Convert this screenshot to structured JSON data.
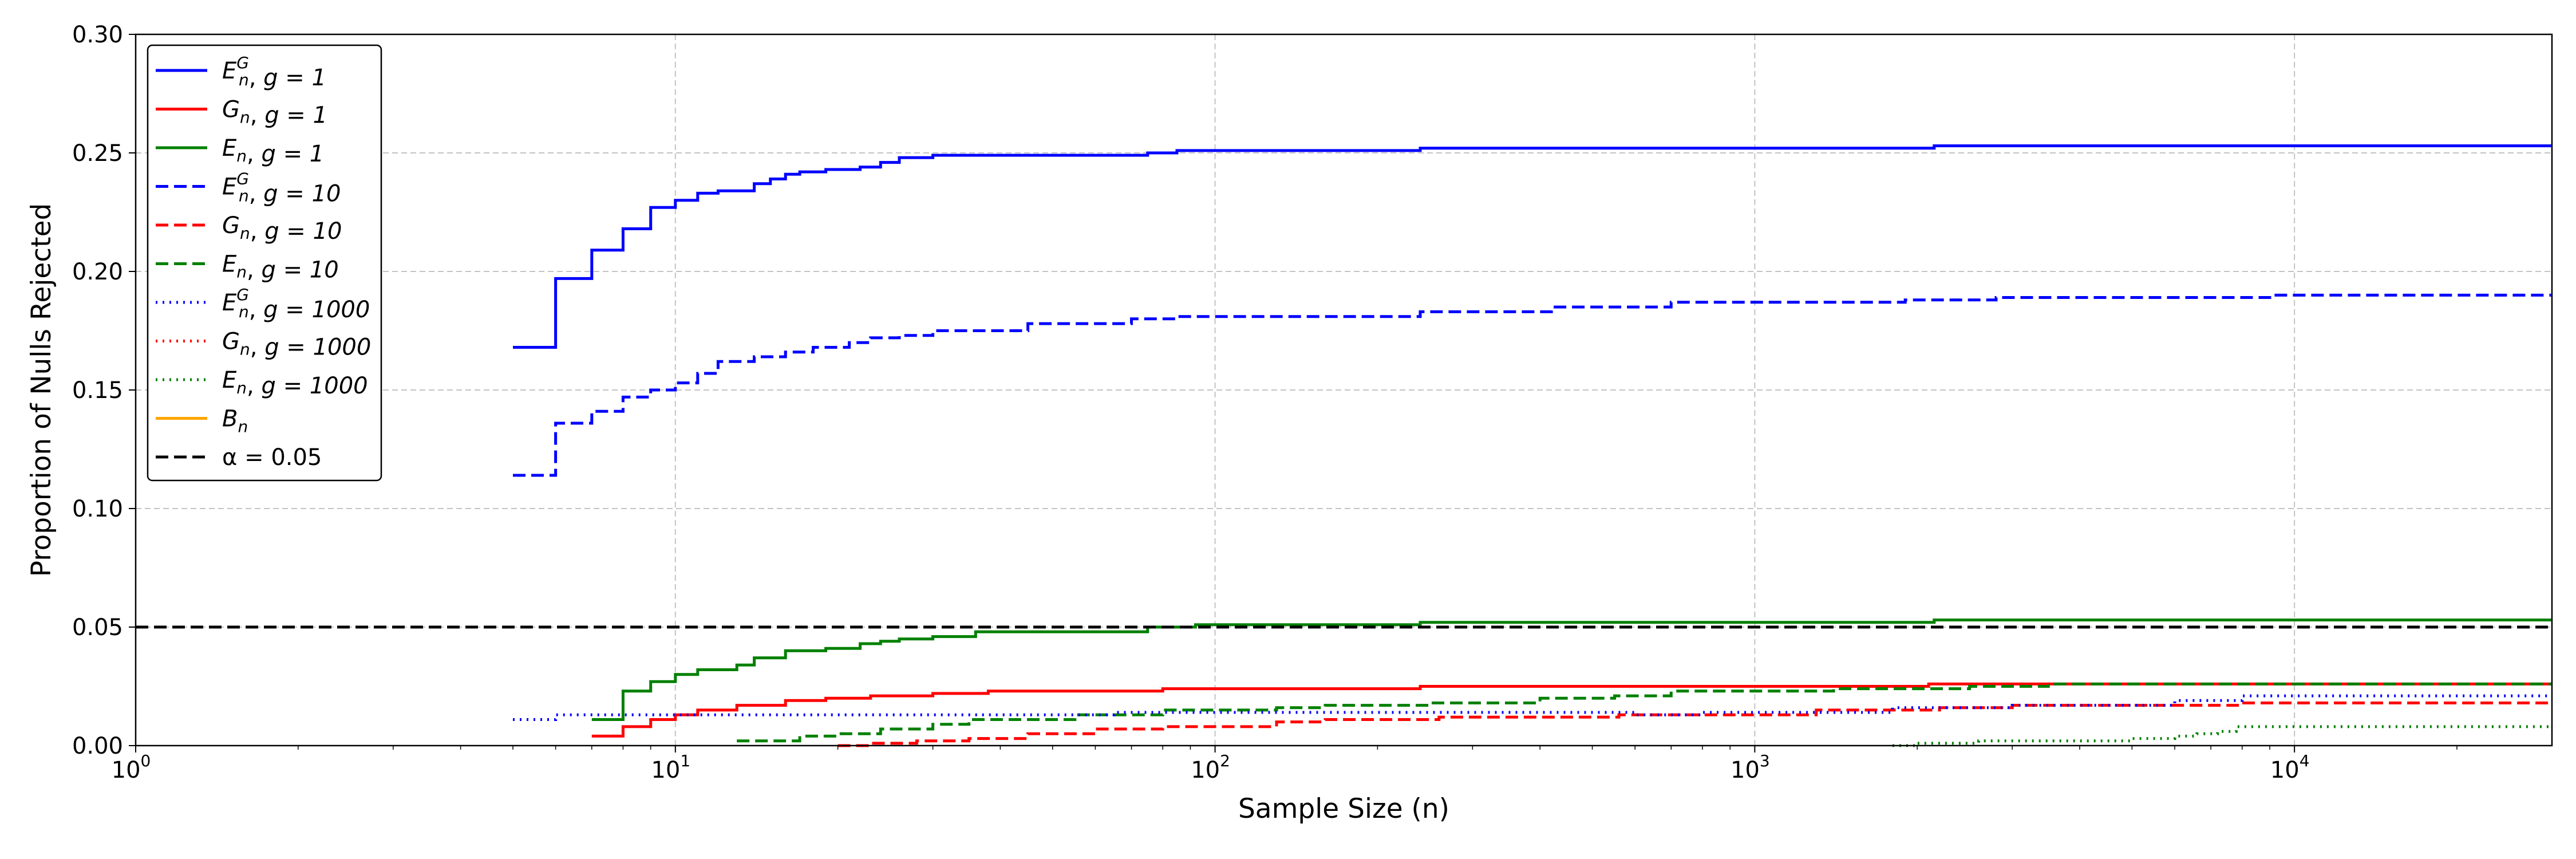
{
  "chart_data": {
    "type": "line",
    "step": true,
    "xlabel": "Sample Size (n)",
    "ylabel": "Proportion of Nulls Rejected",
    "xscale": "log",
    "xlim": [
      1,
      30000
    ],
    "ylim": [
      0,
      0.3
    ],
    "grid": true,
    "legend_position": "upper-left",
    "x_ticks": [
      {
        "value": 1,
        "base": "10",
        "exp": "0"
      },
      {
        "value": 10,
        "base": "10",
        "exp": "1"
      },
      {
        "value": 100,
        "base": "10",
        "exp": "2"
      },
      {
        "value": 1000,
        "base": "10",
        "exp": "3"
      },
      {
        "value": 10000,
        "base": "10",
        "exp": "4"
      }
    ],
    "y_ticks": [
      {
        "value": 0.0,
        "label": "0.00"
      },
      {
        "value": 0.05,
        "label": "0.05"
      },
      {
        "value": 0.1,
        "label": "0.10"
      },
      {
        "value": 0.15,
        "label": "0.15"
      },
      {
        "value": 0.2,
        "label": "0.20"
      },
      {
        "value": 0.25,
        "label": "0.25"
      },
      {
        "value": 0.3,
        "label": "0.30"
      }
    ],
    "reference_line": {
      "label": "α = 0.05",
      "y": 0.05,
      "color": "#000000",
      "dash": "dashed"
    },
    "series": [
      {
        "name": "E_n^G, g = 1",
        "stat": "E",
        "sub": "n",
        "sup": "G",
        "g_label": "g = 1",
        "color": "#0000ff",
        "dash": "solid",
        "points": [
          [
            5,
            0.168
          ],
          [
            6,
            0.197
          ],
          [
            7,
            0.209
          ],
          [
            8,
            0.218
          ],
          [
            9,
            0.227
          ],
          [
            10,
            0.23
          ],
          [
            11,
            0.233
          ],
          [
            12,
            0.234
          ],
          [
            14,
            0.237
          ],
          [
            15,
            0.239
          ],
          [
            16,
            0.241
          ],
          [
            17,
            0.242
          ],
          [
            19,
            0.243
          ],
          [
            22,
            0.244
          ],
          [
            24,
            0.246
          ],
          [
            26,
            0.248
          ],
          [
            30,
            0.249
          ],
          [
            75,
            0.25
          ],
          [
            85,
            0.251
          ],
          [
            240,
            0.252
          ],
          [
            2150,
            0.253
          ],
          [
            30000,
            0.253
          ]
        ]
      },
      {
        "name": "G_n, g = 1",
        "stat": "G",
        "sub": "n",
        "sup": "",
        "g_label": "g = 1",
        "color": "#ff0000",
        "dash": "solid",
        "points": [
          [
            7,
            0.004
          ],
          [
            8,
            0.008
          ],
          [
            9,
            0.011
          ],
          [
            10,
            0.013
          ],
          [
            11,
            0.015
          ],
          [
            13,
            0.017
          ],
          [
            16,
            0.019
          ],
          [
            19,
            0.02
          ],
          [
            23,
            0.021
          ],
          [
            30,
            0.022
          ],
          [
            38,
            0.023
          ],
          [
            80,
            0.024
          ],
          [
            240,
            0.025
          ],
          [
            2100,
            0.026
          ],
          [
            30000,
            0.026
          ]
        ]
      },
      {
        "name": "E_n, g = 1",
        "stat": "E",
        "sub": "n",
        "sup": "",
        "g_label": "g = 1",
        "color": "#008000",
        "dash": "solid",
        "points": [
          [
            7,
            0.011
          ],
          [
            8,
            0.023
          ],
          [
            9,
            0.027
          ],
          [
            10,
            0.03
          ],
          [
            11,
            0.032
          ],
          [
            13,
            0.034
          ],
          [
            14,
            0.037
          ],
          [
            16,
            0.04
          ],
          [
            19,
            0.041
          ],
          [
            22,
            0.043
          ],
          [
            24,
            0.044
          ],
          [
            26,
            0.045
          ],
          [
            30,
            0.046
          ],
          [
            36,
            0.048
          ],
          [
            75,
            0.05
          ],
          [
            92,
            0.051
          ],
          [
            240,
            0.052
          ],
          [
            2150,
            0.053
          ],
          [
            30000,
            0.053
          ]
        ]
      },
      {
        "name": "E_n^G, g = 10",
        "stat": "E",
        "sub": "n",
        "sup": "G",
        "g_label": "g = 10",
        "color": "#0000ff",
        "dash": "dashed",
        "points": [
          [
            5,
            0.114
          ],
          [
            6,
            0.136
          ],
          [
            7,
            0.141
          ],
          [
            8,
            0.147
          ],
          [
            9,
            0.15
          ],
          [
            10,
            0.153
          ],
          [
            11,
            0.157
          ],
          [
            12,
            0.162
          ],
          [
            14,
            0.164
          ],
          [
            16,
            0.166
          ],
          [
            18,
            0.168
          ],
          [
            21,
            0.17
          ],
          [
            23,
            0.172
          ],
          [
            26,
            0.173
          ],
          [
            30,
            0.175
          ],
          [
            45,
            0.178
          ],
          [
            70,
            0.18
          ],
          [
            85,
            0.181
          ],
          [
            240,
            0.183
          ],
          [
            420,
            0.185
          ],
          [
            700,
            0.187
          ],
          [
            1900,
            0.188
          ],
          [
            2800,
            0.189
          ],
          [
            9000,
            0.19
          ],
          [
            30000,
            0.19
          ]
        ]
      },
      {
        "name": "G_n, g = 10",
        "stat": "G",
        "sub": "n",
        "sup": "",
        "g_label": "g = 10",
        "color": "#ff0000",
        "dash": "dashed",
        "points": [
          [
            20,
            0.0
          ],
          [
            23,
            0.001
          ],
          [
            28,
            0.002
          ],
          [
            35,
            0.003
          ],
          [
            45,
            0.005
          ],
          [
            60,
            0.007
          ],
          [
            80,
            0.008
          ],
          [
            130,
            0.01
          ],
          [
            160,
            0.011
          ],
          [
            260,
            0.012
          ],
          [
            560,
            0.013
          ],
          [
            1300,
            0.015
          ],
          [
            2200,
            0.016
          ],
          [
            3000,
            0.017
          ],
          [
            8000,
            0.018
          ],
          [
            30000,
            0.018
          ]
        ]
      },
      {
        "name": "E_n, g = 10",
        "stat": "E",
        "sub": "n",
        "sup": "",
        "g_label": "g = 10",
        "color": "#008000",
        "dash": "dashed",
        "points": [
          [
            13,
            0.002
          ],
          [
            17,
            0.004
          ],
          [
            20,
            0.005
          ],
          [
            24,
            0.007
          ],
          [
            30,
            0.009
          ],
          [
            35,
            0.011
          ],
          [
            55,
            0.013
          ],
          [
            80,
            0.015
          ],
          [
            130,
            0.016
          ],
          [
            160,
            0.017
          ],
          [
            250,
            0.018
          ],
          [
            400,
            0.02
          ],
          [
            550,
            0.021
          ],
          [
            700,
            0.023
          ],
          [
            1400,
            0.024
          ],
          [
            2500,
            0.025
          ],
          [
            3500,
            0.026
          ],
          [
            30000,
            0.026
          ]
        ]
      },
      {
        "name": "E_n^G, g = 1000",
        "stat": "E",
        "sub": "n",
        "sup": "G",
        "g_label": "g = 1000",
        "color": "#0000ff",
        "dash": "dotted",
        "points": [
          [
            5,
            0.011
          ],
          [
            6,
            0.013
          ],
          [
            65,
            0.014
          ],
          [
            600,
            0.013
          ],
          [
            800,
            0.014
          ],
          [
            1800,
            0.016
          ],
          [
            3000,
            0.017
          ],
          [
            6000,
            0.019
          ],
          [
            8000,
            0.021
          ],
          [
            30000,
            0.021
          ]
        ]
      },
      {
        "name": "G_n, g = 1000",
        "stat": "G",
        "sub": "n",
        "sup": "",
        "g_label": "g = 1000",
        "color": "#ff0000",
        "dash": "dotted",
        "points": []
      },
      {
        "name": "E_n, g = 1000",
        "stat": "E",
        "sub": "n",
        "sup": "",
        "g_label": "g = 1000",
        "color": "#008000",
        "dash": "dotted",
        "points": [
          [
            1800,
            0.0
          ],
          [
            2000,
            0.001
          ],
          [
            2600,
            0.002
          ],
          [
            5000,
            0.003
          ],
          [
            6000,
            0.004
          ],
          [
            6600,
            0.005
          ],
          [
            7200,
            0.006
          ],
          [
            7800,
            0.008
          ],
          [
            30000,
            0.008
          ]
        ]
      },
      {
        "name": "B_n",
        "stat": "B",
        "sub": "n",
        "sup": "",
        "g_label": "",
        "color": "#ffa500",
        "dash": "solid",
        "points": []
      }
    ]
  }
}
